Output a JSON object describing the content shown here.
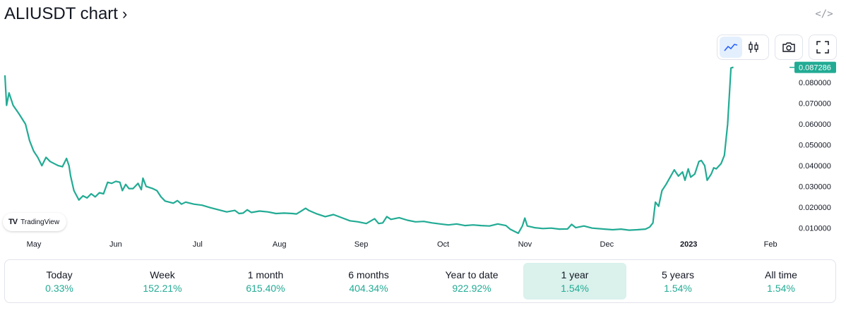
{
  "header": {
    "title": "ALIUSDT chart",
    "title_chevron": "›",
    "embed_icon_label": "</>"
  },
  "toolbar": {
    "line_chart": "line-chart-icon",
    "candles": "candlestick-icon",
    "snapshot": "camera-icon",
    "fullscreen": "fullscreen-icon"
  },
  "logo": {
    "mark": "TV",
    "text": "TradingView"
  },
  "colors": {
    "line": "#22ab94",
    "price_badge": "#22ab94",
    "axis_text": "#131722",
    "active_period_bg": "#daf1ec"
  },
  "chart_data": {
    "type": "line",
    "symbol": "ALIUSDT",
    "title": "ALIUSDT chart",
    "x_labels": [
      "May",
      "Jun",
      "Jul",
      "Aug",
      "Sep",
      "Oct",
      "Nov",
      "Dec",
      "2023",
      "Feb"
    ],
    "x_label_bold": "2023",
    "y_ticks": [
      "0.080000",
      "0.070000",
      "0.060000",
      "0.050000",
      "0.040000",
      "0.030000",
      "0.020000",
      "0.010000"
    ],
    "y_tick_values": [
      0.08,
      0.07,
      0.06,
      0.05,
      0.04,
      0.03,
      0.02,
      0.01
    ],
    "ylim": [
      0.0065,
      0.0885
    ],
    "last_price": "0.087286",
    "last_price_value": 0.087286,
    "x_range_months": [
      0,
      9.2
    ],
    "series": [
      {
        "name": "ALIUSDT",
        "points": [
          [
            0.0,
            0.0835
          ],
          [
            0.02,
            0.069
          ],
          [
            0.05,
            0.075
          ],
          [
            0.1,
            0.069
          ],
          [
            0.17,
            0.065
          ],
          [
            0.25,
            0.06
          ],
          [
            0.3,
            0.052
          ],
          [
            0.35,
            0.047
          ],
          [
            0.4,
            0.044
          ],
          [
            0.45,
            0.04
          ],
          [
            0.5,
            0.044
          ],
          [
            0.55,
            0.042
          ],
          [
            0.6,
            0.041
          ],
          [
            0.65,
            0.04
          ],
          [
            0.7,
            0.0395
          ],
          [
            0.75,
            0.0435
          ],
          [
            0.78,
            0.04
          ],
          [
            0.8,
            0.035
          ],
          [
            0.84,
            0.028
          ],
          [
            0.9,
            0.0235
          ],
          [
            0.95,
            0.0255
          ],
          [
            1.0,
            0.0245
          ],
          [
            1.05,
            0.0265
          ],
          [
            1.1,
            0.025
          ],
          [
            1.15,
            0.027
          ],
          [
            1.2,
            0.0265
          ],
          [
            1.25,
            0.032
          ],
          [
            1.3,
            0.0315
          ],
          [
            1.35,
            0.0325
          ],
          [
            1.4,
            0.032
          ],
          [
            1.43,
            0.028
          ],
          [
            1.47,
            0.031
          ],
          [
            1.51,
            0.029
          ],
          [
            1.56,
            0.029
          ],
          [
            1.62,
            0.0315
          ],
          [
            1.66,
            0.0285
          ],
          [
            1.68,
            0.034
          ],
          [
            1.72,
            0.03
          ],
          [
            1.8,
            0.029
          ],
          [
            1.85,
            0.028
          ],
          [
            1.9,
            0.025
          ],
          [
            1.95,
            0.023
          ],
          [
            2.0,
            0.0225
          ],
          [
            2.05,
            0.022
          ],
          [
            2.1,
            0.0232
          ],
          [
            2.15,
            0.0215
          ],
          [
            2.2,
            0.0225
          ],
          [
            2.3,
            0.0215
          ],
          [
            2.4,
            0.021
          ],
          [
            2.5,
            0.0198
          ],
          [
            2.6,
            0.0188
          ],
          [
            2.7,
            0.0178
          ],
          [
            2.8,
            0.0185
          ],
          [
            2.85,
            0.017
          ],
          [
            2.9,
            0.0172
          ],
          [
            2.95,
            0.0188
          ],
          [
            3.0,
            0.0175
          ],
          [
            3.1,
            0.0182
          ],
          [
            3.2,
            0.0178
          ],
          [
            3.3,
            0.017
          ],
          [
            3.4,
            0.0172
          ],
          [
            3.5,
            0.017
          ],
          [
            3.55,
            0.0168
          ],
          [
            3.6,
            0.018
          ],
          [
            3.66,
            0.0195
          ],
          [
            3.7,
            0.0185
          ],
          [
            3.8,
            0.0168
          ],
          [
            3.9,
            0.0155
          ],
          [
            4.0,
            0.0165
          ],
          [
            4.1,
            0.015
          ],
          [
            4.2,
            0.0135
          ],
          [
            4.3,
            0.013
          ],
          [
            4.4,
            0.0122
          ],
          [
            4.5,
            0.0145
          ],
          [
            4.55,
            0.0122
          ],
          [
            4.6,
            0.0125
          ],
          [
            4.65,
            0.0155
          ],
          [
            4.7,
            0.0142
          ],
          [
            4.8,
            0.015
          ],
          [
            4.9,
            0.0138
          ],
          [
            5.0,
            0.013
          ],
          [
            5.1,
            0.0132
          ],
          [
            5.2,
            0.0125
          ],
          [
            5.3,
            0.012
          ],
          [
            5.4,
            0.0115
          ],
          [
            5.5,
            0.012
          ],
          [
            5.6,
            0.0112
          ],
          [
            5.7,
            0.0115
          ],
          [
            5.8,
            0.0112
          ],
          [
            5.9,
            0.011
          ],
          [
            6.0,
            0.012
          ],
          [
            6.1,
            0.0112
          ],
          [
            6.15,
            0.0095
          ],
          [
            6.2,
            0.0085
          ],
          [
            6.25,
            0.0075
          ],
          [
            6.3,
            0.011
          ],
          [
            6.33,
            0.0148
          ],
          [
            6.36,
            0.011
          ],
          [
            6.45,
            0.0102
          ],
          [
            6.55,
            0.0098
          ],
          [
            6.65,
            0.01
          ],
          [
            6.75,
            0.0095
          ],
          [
            6.85,
            0.0096
          ],
          [
            6.9,
            0.0118
          ],
          [
            6.95,
            0.0102
          ],
          [
            7.05,
            0.011
          ],
          [
            7.15,
            0.01
          ],
          [
            7.3,
            0.0095
          ],
          [
            7.4,
            0.0092
          ],
          [
            7.5,
            0.0095
          ],
          [
            7.6,
            0.009
          ],
          [
            7.7,
            0.0092
          ],
          [
            7.8,
            0.0095
          ],
          [
            7.85,
            0.0105
          ],
          [
            7.89,
            0.0125
          ],
          [
            7.92,
            0.0225
          ],
          [
            7.96,
            0.0205
          ],
          [
            8.0,
            0.028
          ],
          [
            8.05,
            0.031
          ],
          [
            8.1,
            0.0345
          ],
          [
            8.15,
            0.038
          ],
          [
            8.2,
            0.035
          ],
          [
            8.25,
            0.037
          ],
          [
            8.28,
            0.033
          ],
          [
            8.32,
            0.0385
          ],
          [
            8.35,
            0.0345
          ],
          [
            8.4,
            0.036
          ],
          [
            8.45,
            0.042
          ],
          [
            8.48,
            0.0425
          ],
          [
            8.52,
            0.04
          ],
          [
            8.55,
            0.033
          ],
          [
            8.6,
            0.036
          ],
          [
            8.63,
            0.039
          ],
          [
            8.66,
            0.0385
          ],
          [
            8.72,
            0.041
          ],
          [
            8.76,
            0.045
          ],
          [
            8.8,
            0.06
          ],
          [
            8.84,
            0.087
          ],
          [
            8.87,
            0.0873
          ]
        ]
      }
    ]
  },
  "performance": [
    {
      "label": "Today",
      "value": "0.33%"
    },
    {
      "label": "Week",
      "value": "152.21%"
    },
    {
      "label": "1 month",
      "value": "615.40%"
    },
    {
      "label": "6 months",
      "value": "404.34%"
    },
    {
      "label": "Year to date",
      "value": "922.92%"
    },
    {
      "label": "1 year",
      "value": "1.54%",
      "active": true
    },
    {
      "label": "5 years",
      "value": "1.54%"
    },
    {
      "label": "All time",
      "value": "1.54%"
    }
  ]
}
